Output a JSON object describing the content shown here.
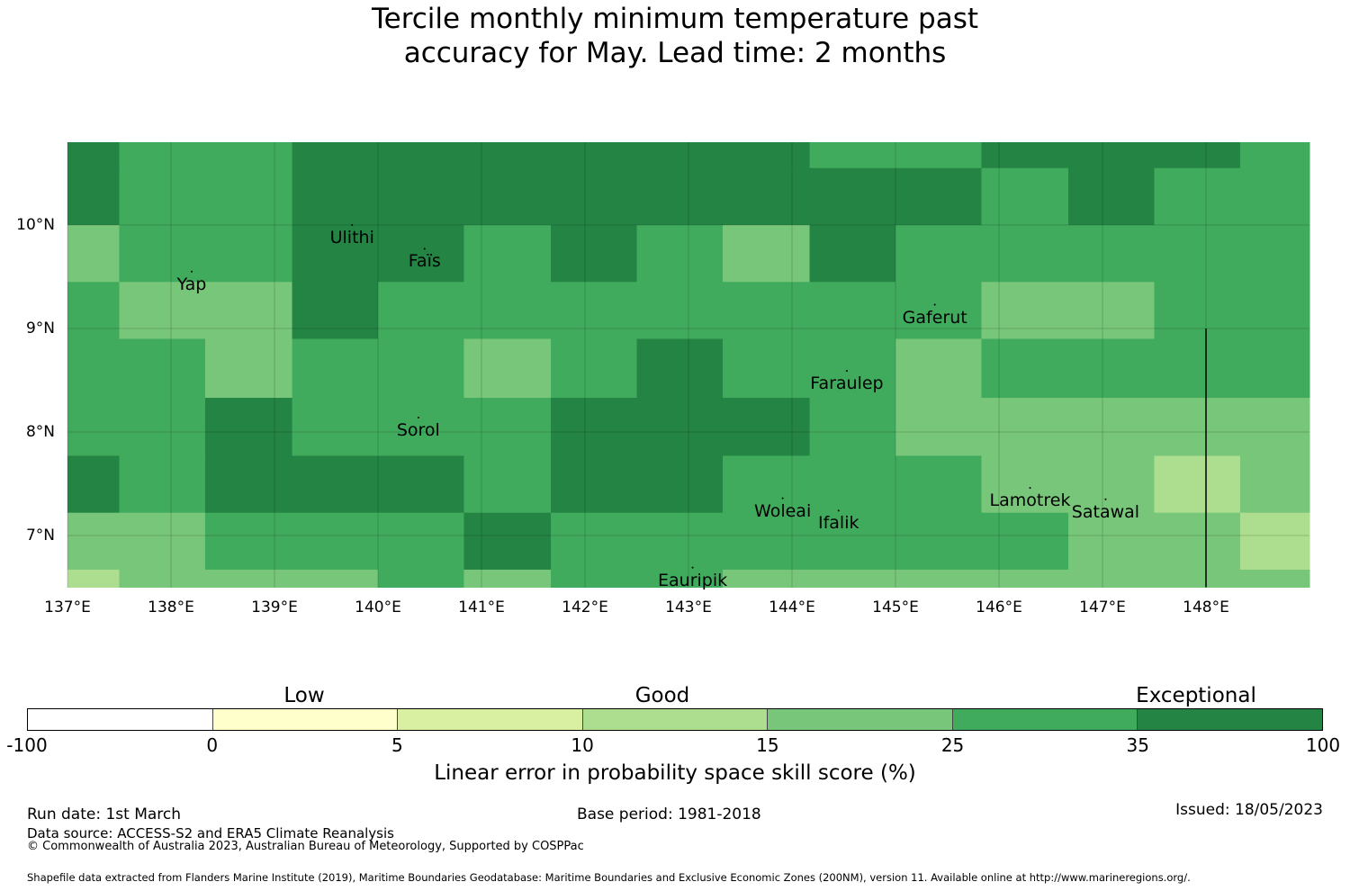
{
  "title": {
    "line1": "Tercile monthly minimum temperature past",
    "line2": "accuracy for May. Lead time: 2 months"
  },
  "map": {
    "lon_labels": [
      "137°E",
      "138°E",
      "139°E",
      "140°E",
      "141°E",
      "142°E",
      "143°E",
      "144°E",
      "145°E",
      "146°E",
      "147°E",
      "148°E"
    ],
    "lat_labels": [
      "10°N",
      "9°N",
      "8°N",
      "7°N"
    ],
    "extent": {
      "lon_min": 137.0,
      "lon_max": 149.0,
      "lat_min": 6.5,
      "lat_max": 10.8
    },
    "lon_edges": [
      137.0,
      137.5,
      138.33,
      139.17,
      140.0,
      140.83,
      141.67,
      142.5,
      143.33,
      144.17,
      145.0,
      145.83,
      146.67,
      147.5,
      148.33,
      149.0
    ],
    "lat_edges": [
      10.8,
      10.55,
      10.0,
      9.45,
      8.9,
      8.33,
      7.77,
      7.22,
      6.67,
      6.5
    ],
    "grid_levels": [
      [
        6,
        5,
        5,
        6,
        6,
        6,
        6,
        6,
        6,
        5,
        5,
        6,
        6,
        6,
        5
      ],
      [
        6,
        5,
        5,
        6,
        6,
        6,
        6,
        6,
        6,
        6,
        6,
        5,
        6,
        5,
        5
      ],
      [
        4,
        5,
        5,
        6,
        6,
        5,
        6,
        5,
        4,
        6,
        5,
        5,
        5,
        5,
        5
      ],
      [
        5,
        4,
        4,
        6,
        5,
        5,
        5,
        5,
        5,
        5,
        5,
        4,
        4,
        5,
        5
      ],
      [
        5,
        5,
        4,
        5,
        5,
        4,
        5,
        6,
        5,
        5,
        4,
        5,
        5,
        5,
        5
      ],
      [
        5,
        5,
        6,
        5,
        5,
        5,
        6,
        6,
        6,
        5,
        4,
        4,
        4,
        4,
        4
      ],
      [
        6,
        5,
        6,
        6,
        6,
        5,
        6,
        6,
        5,
        5,
        5,
        4,
        4,
        3,
        4
      ],
      [
        4,
        4,
        5,
        5,
        5,
        6,
        5,
        5,
        5,
        5,
        5,
        5,
        4,
        4,
        3
      ],
      [
        3,
        4,
        4,
        4,
        5,
        4,
        5,
        5,
        4,
        4,
        4,
        4,
        4,
        4,
        4
      ]
    ],
    "places": [
      {
        "name": "Ulithi",
        "lon": 139.75,
        "lat": 10.0
      },
      {
        "name": "Faïs",
        "lon": 140.45,
        "lat": 9.77
      },
      {
        "name": "Yap",
        "lon": 138.2,
        "lat": 9.55
      },
      {
        "name": "Gaferut",
        "lon": 145.38,
        "lat": 9.23
      },
      {
        "name": "Faraulep",
        "lon": 144.53,
        "lat": 8.59
      },
      {
        "name": "Sorol",
        "lon": 140.39,
        "lat": 8.14
      },
      {
        "name": "Woleai",
        "lon": 143.91,
        "lat": 7.36
      },
      {
        "name": "Ifalik",
        "lon": 144.45,
        "lat": 7.24
      },
      {
        "name": "Lamotrek",
        "lon": 146.3,
        "lat": 7.46
      },
      {
        "name": "Satawal",
        "lon": 147.03,
        "lat": 7.35
      },
      {
        "name": "Eauripik",
        "lon": 143.04,
        "lat": 6.69
      }
    ],
    "boundary_line": {
      "lon": 148.0,
      "lat_from": 9.0,
      "lat_to": 6.5
    }
  },
  "colorbar": {
    "bounds": [
      "-100",
      "0",
      "5",
      "10",
      "15",
      "25",
      "35",
      "100"
    ],
    "colors": [
      "#ffffff",
      "#ffffcc",
      "#d9f0a3",
      "#addd8e",
      "#78c679",
      "#41ab5d",
      "#238443"
    ],
    "categories": [
      "Low",
      "Good",
      "Exceptional"
    ],
    "label": "Linear error in probability space skill score (%)"
  },
  "footer": {
    "run_date": "Run date: 1st March",
    "base_period": "Base period: 1981-2018",
    "issued": "Issued: 18/05/2023",
    "data_source": "Data source: ACCESS-S2 and ERA5 Climate Reanalysis",
    "copyright": "© Commonwealth of Australia 2023, Australian Bureau of Meteorology, Supported by COSPPac",
    "shapefile": "Shapefile data extracted from Flanders Marine Institute (2019), Maritime Boundaries Geodatabase: Maritime Boundaries and Exclusive Economic Zones (200NM), version 11. Available online at http://www.marineregions.org/."
  }
}
